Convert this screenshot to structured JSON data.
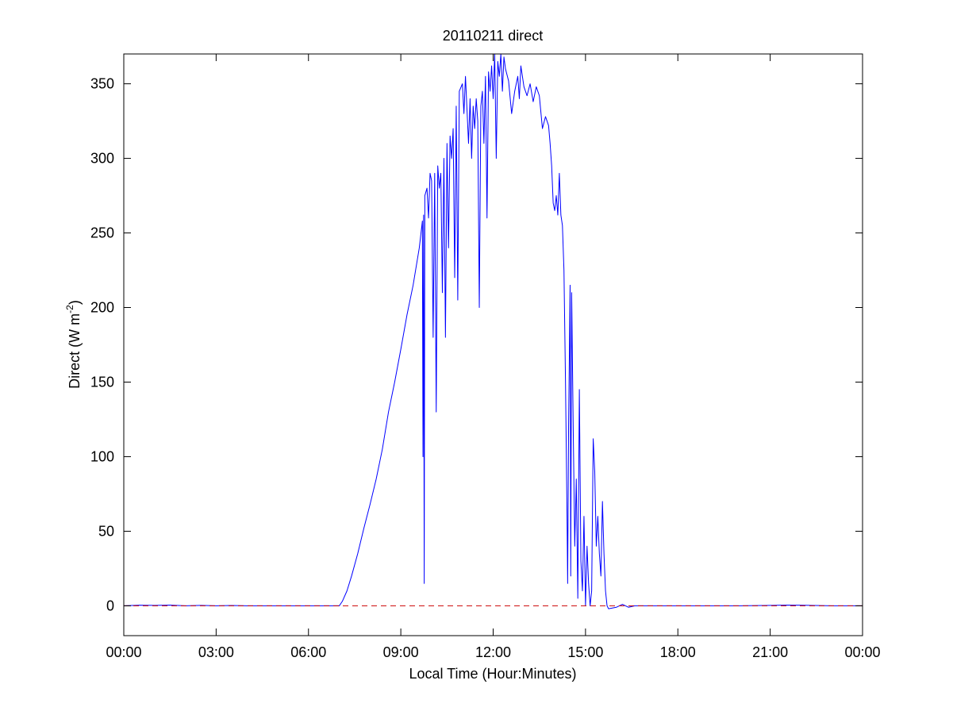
{
  "chart_data": {
    "type": "line",
    "title": "20110211 direct",
    "xlabel": "Local Time (Hour:Minutes)",
    "ylabel": {
      "prefix": "Direct (W m",
      "superscript": "-2",
      "suffix": ")"
    },
    "xlim": [
      0,
      24
    ],
    "ylim": [
      -20,
      370
    ],
    "x_ticks": [
      {
        "value": 0,
        "label": "00:00"
      },
      {
        "value": 3,
        "label": "03:00"
      },
      {
        "value": 6,
        "label": "06:00"
      },
      {
        "value": 9,
        "label": "09:00"
      },
      {
        "value": 12,
        "label": "12:00"
      },
      {
        "value": 15,
        "label": "15:00"
      },
      {
        "value": 18,
        "label": "18:00"
      },
      {
        "value": 21,
        "label": "21:00"
      },
      {
        "value": 24,
        "label": "00:00"
      }
    ],
    "y_ticks": [
      {
        "value": 0,
        "label": "0"
      },
      {
        "value": 50,
        "label": "50"
      },
      {
        "value": 100,
        "label": "100"
      },
      {
        "value": 150,
        "label": "150"
      },
      {
        "value": 200,
        "label": "200"
      },
      {
        "value": 250,
        "label": "250"
      },
      {
        "value": 300,
        "label": "300"
      },
      {
        "value": 350,
        "label": "350"
      }
    ],
    "grid": false,
    "legend": "none",
    "series": [
      {
        "color": "#0000ff",
        "style": "solid",
        "points": [
          [
            0.0,
            0.0
          ],
          [
            0.5,
            0.4
          ],
          [
            1.0,
            0.3
          ],
          [
            1.5,
            0.5
          ],
          [
            2.0,
            0.0
          ],
          [
            2.5,
            0.3
          ],
          [
            3.0,
            0.0
          ],
          [
            3.5,
            0.2
          ],
          [
            4.0,
            0.0
          ],
          [
            5.0,
            0.0
          ],
          [
            6.0,
            0.0
          ],
          [
            7.0,
            0.0
          ],
          [
            7.1,
            3
          ],
          [
            7.25,
            10
          ],
          [
            7.4,
            20
          ],
          [
            7.6,
            35
          ],
          [
            7.8,
            52
          ],
          [
            8.0,
            68
          ],
          [
            8.2,
            85
          ],
          [
            8.4,
            105
          ],
          [
            8.6,
            130
          ],
          [
            8.8,
            150
          ],
          [
            9.0,
            172
          ],
          [
            9.2,
            195
          ],
          [
            9.4,
            215
          ],
          [
            9.6,
            240
          ],
          [
            9.7,
            258
          ],
          [
            9.72,
            100
          ],
          [
            9.74,
            262
          ],
          [
            9.76,
            15
          ],
          [
            9.78,
            275
          ],
          [
            9.85,
            280
          ],
          [
            9.9,
            260
          ],
          [
            9.95,
            290
          ],
          [
            10.0,
            285
          ],
          [
            10.05,
            180
          ],
          [
            10.1,
            290
          ],
          [
            10.15,
            130
          ],
          [
            10.2,
            295
          ],
          [
            10.25,
            280
          ],
          [
            10.3,
            290
          ],
          [
            10.35,
            210
          ],
          [
            10.4,
            300
          ],
          [
            10.45,
            180
          ],
          [
            10.5,
            310
          ],
          [
            10.55,
            240
          ],
          [
            10.6,
            315
          ],
          [
            10.65,
            300
          ],
          [
            10.7,
            320
          ],
          [
            10.75,
            220
          ],
          [
            10.8,
            335
          ],
          [
            10.85,
            205
          ],
          [
            10.9,
            345
          ],
          [
            11.0,
            350
          ],
          [
            11.05,
            330
          ],
          [
            11.1,
            355
          ],
          [
            11.2,
            310
          ],
          [
            11.25,
            340
          ],
          [
            11.3,
            300
          ],
          [
            11.35,
            335
          ],
          [
            11.4,
            320
          ],
          [
            11.45,
            340
          ],
          [
            11.5,
            325
          ],
          [
            11.55,
            200
          ],
          [
            11.6,
            335
          ],
          [
            11.65,
            345
          ],
          [
            11.7,
            310
          ],
          [
            11.75,
            355
          ],
          [
            11.8,
            260
          ],
          [
            11.85,
            358
          ],
          [
            11.9,
            345
          ],
          [
            11.95,
            362
          ],
          [
            12.0,
            340
          ],
          [
            12.05,
            370
          ],
          [
            12.1,
            300
          ],
          [
            12.15,
            365
          ],
          [
            12.2,
            355
          ],
          [
            12.25,
            370
          ],
          [
            12.3,
            345
          ],
          [
            12.35,
            368
          ],
          [
            12.4,
            360
          ],
          [
            12.5,
            352
          ],
          [
            12.6,
            330
          ],
          [
            12.7,
            345
          ],
          [
            12.8,
            355
          ],
          [
            12.85,
            340
          ],
          [
            12.9,
            362
          ],
          [
            13.0,
            348
          ],
          [
            13.1,
            342
          ],
          [
            13.2,
            350
          ],
          [
            13.3,
            338
          ],
          [
            13.4,
            348
          ],
          [
            13.5,
            342
          ],
          [
            13.6,
            320
          ],
          [
            13.7,
            328
          ],
          [
            13.8,
            322
          ],
          [
            13.85,
            310
          ],
          [
            13.9,
            295
          ],
          [
            13.95,
            270
          ],
          [
            14.0,
            265
          ],
          [
            14.05,
            275
          ],
          [
            14.1,
            262
          ],
          [
            14.15,
            290
          ],
          [
            14.2,
            262
          ],
          [
            14.25,
            255
          ],
          [
            14.3,
            225
          ],
          [
            14.35,
            150
          ],
          [
            14.4,
            60
          ],
          [
            14.42,
            15
          ],
          [
            14.45,
            120
          ],
          [
            14.5,
            215
          ],
          [
            14.52,
            20
          ],
          [
            14.55,
            210
          ],
          [
            14.6,
            120
          ],
          [
            14.65,
            40
          ],
          [
            14.7,
            85
          ],
          [
            14.75,
            5
          ],
          [
            14.8,
            145
          ],
          [
            14.85,
            30
          ],
          [
            14.9,
            10
          ],
          [
            14.95,
            60
          ],
          [
            15.0,
            0
          ],
          [
            15.05,
            40
          ],
          [
            15.1,
            15
          ],
          [
            15.15,
            0
          ],
          [
            15.2,
            10
          ],
          [
            15.25,
            112
          ],
          [
            15.3,
            90
          ],
          [
            15.35,
            40
          ],
          [
            15.4,
            60
          ],
          [
            15.45,
            35
          ],
          [
            15.5,
            20
          ],
          [
            15.55,
            70
          ],
          [
            15.6,
            35
          ],
          [
            15.65,
            10
          ],
          [
            15.7,
            0
          ],
          [
            15.75,
            -2
          ],
          [
            16.0,
            -1
          ],
          [
            16.2,
            1
          ],
          [
            16.4,
            -1
          ],
          [
            16.6,
            0
          ],
          [
            17.0,
            0
          ],
          [
            18.0,
            0
          ],
          [
            19.0,
            0
          ],
          [
            20.0,
            0
          ],
          [
            21.0,
            0.3
          ],
          [
            21.5,
            0.5
          ],
          [
            22.0,
            0.4
          ],
          [
            22.5,
            0.2
          ],
          [
            23.0,
            0
          ],
          [
            24.0,
            0
          ]
        ]
      },
      {
        "color": "#cc0000",
        "style": "dashed",
        "points": [
          [
            0,
            0
          ],
          [
            24,
            0
          ]
        ]
      }
    ]
  }
}
